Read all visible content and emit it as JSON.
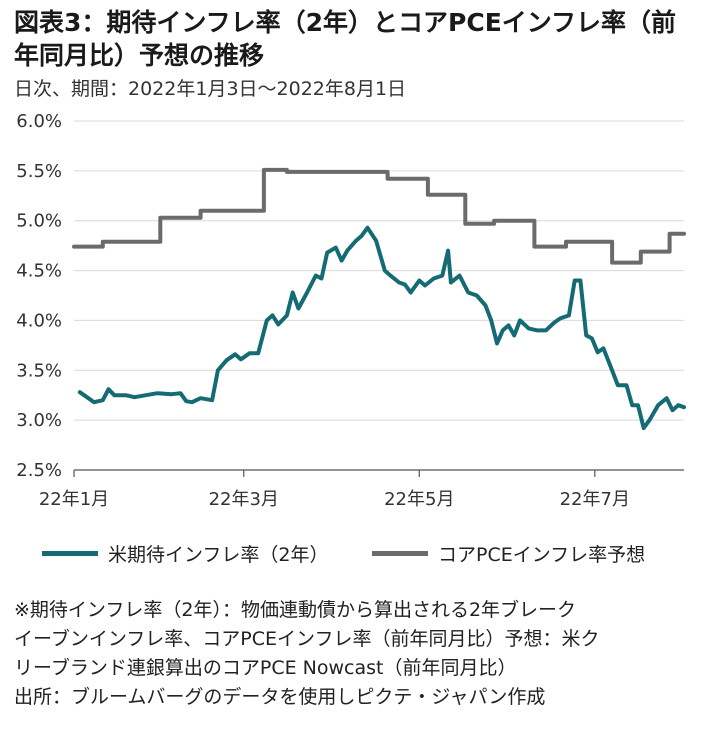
{
  "title": "図表3：期待インフレ率（2年）とコアPCEインフレ率（前年同月比）予想の推移",
  "subtitle": "日次、期間：2022年1月3日～2022年8月1日",
  "notes": [
    "※期待インフレ率（2年）：物価連動債から算出される2年ブレーク",
    "イーブンインフレ率、コアPCEインフレ率（前年同月比）予想：米ク",
    "リーブランド連銀算出のコアPCE Nowcast（前年同月比）",
    "出所：ブルームバーグのデータを使用しピクテ・ジャパン作成"
  ],
  "colors": {
    "teal": "#146b73",
    "gray": "#6b6b6b",
    "grid": "#d9d9d9"
  },
  "chart_data": {
    "type": "line",
    "title": "図表3：期待インフレ率（2年）とコアPCEインフレ率（前年同月比）予想の推移",
    "ylim": [
      2.5,
      6.0
    ],
    "yticks": [
      "2.5%",
      "3.0%",
      "3.5%",
      "4.0%",
      "4.5%",
      "5.0%",
      "5.5%",
      "6.0%"
    ],
    "xtick_labels": [
      "22年1月",
      "22年3月",
      "22年5月",
      "22年7月"
    ],
    "xtick_dates": [
      "2022-01-01",
      "2022-03-01",
      "2022-05-01",
      "2022-07-01"
    ],
    "xlim": [
      "2022-01-01",
      "2022-08-01"
    ],
    "grid": true,
    "legend_position": "bottom",
    "series": [
      {
        "name": "米期待インフレ率（2年）",
        "color": "#146b73",
        "points": [
          [
            "2022-01-03",
            3.28
          ],
          [
            "2022-01-06",
            3.22
          ],
          [
            "2022-01-08",
            3.18
          ],
          [
            "2022-01-11",
            3.2
          ],
          [
            "2022-01-13",
            3.31
          ],
          [
            "2022-01-15",
            3.25
          ],
          [
            "2022-01-19",
            3.25
          ],
          [
            "2022-01-22",
            3.23
          ],
          [
            "2022-01-26",
            3.25
          ],
          [
            "2022-01-30",
            3.27
          ],
          [
            "2022-02-04",
            3.26
          ],
          [
            "2022-02-07",
            3.27
          ],
          [
            "2022-02-09",
            3.19
          ],
          [
            "2022-02-11",
            3.18
          ],
          [
            "2022-02-14",
            3.22
          ],
          [
            "2022-02-18",
            3.2
          ],
          [
            "2022-02-20",
            3.5
          ],
          [
            "2022-02-23",
            3.6
          ],
          [
            "2022-02-26",
            3.66
          ],
          [
            "2022-02-28",
            3.61
          ],
          [
            "2022-03-03",
            3.67
          ],
          [
            "2022-03-06",
            3.67
          ],
          [
            "2022-03-09",
            4.0
          ],
          [
            "2022-03-11",
            4.05
          ],
          [
            "2022-03-13",
            3.96
          ],
          [
            "2022-03-16",
            4.05
          ],
          [
            "2022-03-18",
            4.28
          ],
          [
            "2022-03-20",
            4.12
          ],
          [
            "2022-03-23",
            4.28
          ],
          [
            "2022-03-26",
            4.45
          ],
          [
            "2022-03-28",
            4.42
          ],
          [
            "2022-03-30",
            4.68
          ],
          [
            "2022-04-02",
            4.73
          ],
          [
            "2022-04-04",
            4.6
          ],
          [
            "2022-04-06",
            4.7
          ],
          [
            "2022-04-09",
            4.8
          ],
          [
            "2022-04-11",
            4.85
          ],
          [
            "2022-04-13",
            4.93
          ],
          [
            "2022-04-16",
            4.8
          ],
          [
            "2022-04-19",
            4.5
          ],
          [
            "2022-04-21",
            4.45
          ],
          [
            "2022-04-24",
            4.38
          ],
          [
            "2022-04-26",
            4.36
          ],
          [
            "2022-04-28",
            4.28
          ],
          [
            "2022-05-01",
            4.4
          ],
          [
            "2022-05-03",
            4.35
          ],
          [
            "2022-05-06",
            4.42
          ],
          [
            "2022-05-09",
            4.45
          ],
          [
            "2022-05-11",
            4.7
          ],
          [
            "2022-05-12",
            4.38
          ],
          [
            "2022-05-15",
            4.45
          ],
          [
            "2022-05-18",
            4.28
          ],
          [
            "2022-05-21",
            4.25
          ],
          [
            "2022-05-24",
            4.15
          ],
          [
            "2022-05-26",
            4.0
          ],
          [
            "2022-05-28",
            3.77
          ],
          [
            "2022-05-30",
            3.9
          ],
          [
            "2022-06-01",
            3.95
          ],
          [
            "2022-06-03",
            3.85
          ],
          [
            "2022-06-05",
            4.0
          ],
          [
            "2022-06-08",
            3.92
          ],
          [
            "2022-06-11",
            3.9
          ],
          [
            "2022-06-14",
            3.9
          ],
          [
            "2022-06-17",
            3.98
          ],
          [
            "2022-06-19",
            4.02
          ],
          [
            "2022-06-22",
            4.05
          ],
          [
            "2022-06-24",
            4.4
          ],
          [
            "2022-06-26",
            4.4
          ],
          [
            "2022-06-28",
            3.85
          ],
          [
            "2022-06-30",
            3.82
          ],
          [
            "2022-07-02",
            3.68
          ],
          [
            "2022-07-04",
            3.72
          ],
          [
            "2022-07-07",
            3.5
          ],
          [
            "2022-07-09",
            3.35
          ],
          [
            "2022-07-12",
            3.35
          ],
          [
            "2022-07-14",
            3.15
          ],
          [
            "2022-07-16",
            3.15
          ],
          [
            "2022-07-18",
            2.92
          ],
          [
            "2022-07-20",
            3.0
          ],
          [
            "2022-07-23",
            3.15
          ],
          [
            "2022-07-26",
            3.22
          ],
          [
            "2022-07-28",
            3.1
          ],
          [
            "2022-07-30",
            3.15
          ],
          [
            "2022-08-01",
            3.13
          ]
        ]
      },
      {
        "name": "コアPCEインフレ率予想",
        "color": "#6b6b6b",
        "points": [
          [
            "2022-01-01",
            4.74
          ],
          [
            "2022-01-11",
            4.74
          ],
          [
            "2022-01-11",
            4.79
          ],
          [
            "2022-01-31",
            4.79
          ],
          [
            "2022-01-31",
            5.03
          ],
          [
            "2022-02-14",
            5.03
          ],
          [
            "2022-02-14",
            5.1
          ],
          [
            "2022-03-08",
            5.1
          ],
          [
            "2022-03-08",
            5.51
          ],
          [
            "2022-03-16",
            5.51
          ],
          [
            "2022-03-16",
            5.49
          ],
          [
            "2022-04-20",
            5.49
          ],
          [
            "2022-04-20",
            5.42
          ],
          [
            "2022-05-04",
            5.42
          ],
          [
            "2022-05-04",
            5.26
          ],
          [
            "2022-05-17",
            5.26
          ],
          [
            "2022-05-17",
            4.97
          ],
          [
            "2022-05-27",
            4.97
          ],
          [
            "2022-05-27",
            5.0
          ],
          [
            "2022-06-10",
            5.0
          ],
          [
            "2022-06-10",
            4.74
          ],
          [
            "2022-06-21",
            4.74
          ],
          [
            "2022-06-21",
            4.79
          ],
          [
            "2022-07-07",
            4.79
          ],
          [
            "2022-07-07",
            4.58
          ],
          [
            "2022-07-17",
            4.58
          ],
          [
            "2022-07-17",
            4.69
          ],
          [
            "2022-07-27",
            4.69
          ],
          [
            "2022-07-27",
            4.87
          ],
          [
            "2022-08-01",
            4.87
          ]
        ]
      }
    ]
  }
}
